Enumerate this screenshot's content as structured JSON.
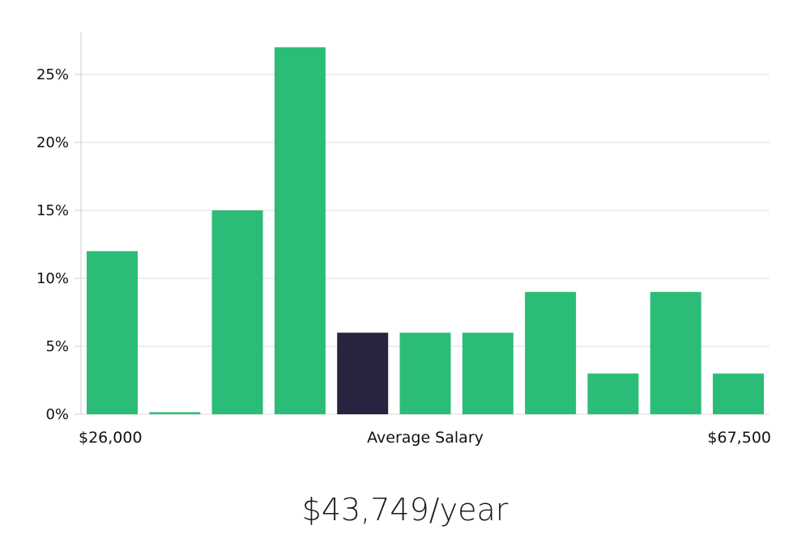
{
  "chart_data": {
    "type": "bar",
    "title": "",
    "xlabel": "Average Salary",
    "ylabel": "",
    "x_range_labels": {
      "min": "$26,000",
      "max": "$67,500"
    },
    "ylim": [
      0,
      28
    ],
    "yticks": [
      0,
      5,
      10,
      15,
      20,
      25
    ],
    "ytick_labels": [
      "0%",
      "5%",
      "10%",
      "15%",
      "20%",
      "25%"
    ],
    "grid": true,
    "values": [
      12,
      0.15,
      15,
      27,
      6,
      6,
      6,
      9,
      3,
      9,
      3
    ],
    "highlight_index": 4,
    "colors": {
      "bar": "#2bbd77",
      "highlight": "#28243f",
      "grid": "#e3e3e3",
      "axis": "#d9d9d9"
    }
  },
  "salary": {
    "value": "$43,749/year"
  }
}
